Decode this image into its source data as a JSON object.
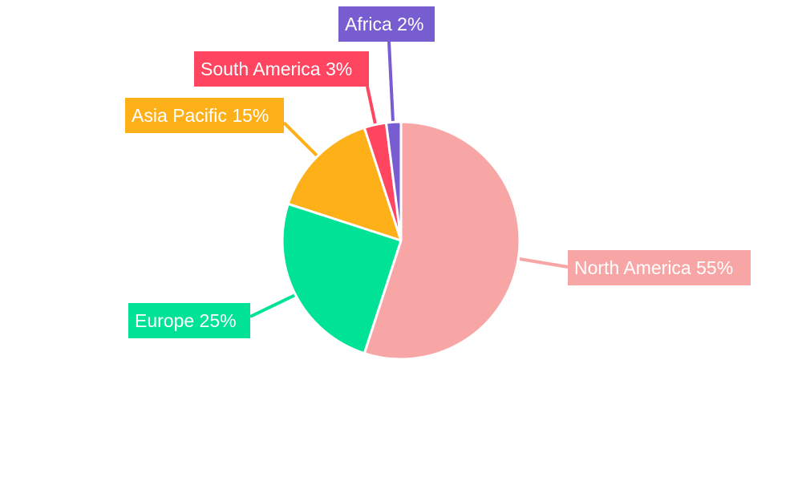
{
  "chart_data": {
    "type": "pie",
    "start_angle": "top, clockwise",
    "slices": [
      {
        "name": "North America",
        "value": 55,
        "label": "North America 55%",
        "color": "#F8A5A5"
      },
      {
        "name": "Europe",
        "value": 25,
        "label": "Europe 25%",
        "color": "#00E396"
      },
      {
        "name": "Asia Pacific",
        "value": 15,
        "label": "Asia Pacific 15%",
        "color": "#FEB019"
      },
      {
        "name": "South America",
        "value": 3,
        "label": "South America 3%",
        "color": "#FF4560"
      },
      {
        "name": "Africa",
        "value": 2,
        "label": "Africa 2%",
        "color": "#775DD0"
      }
    ]
  }
}
